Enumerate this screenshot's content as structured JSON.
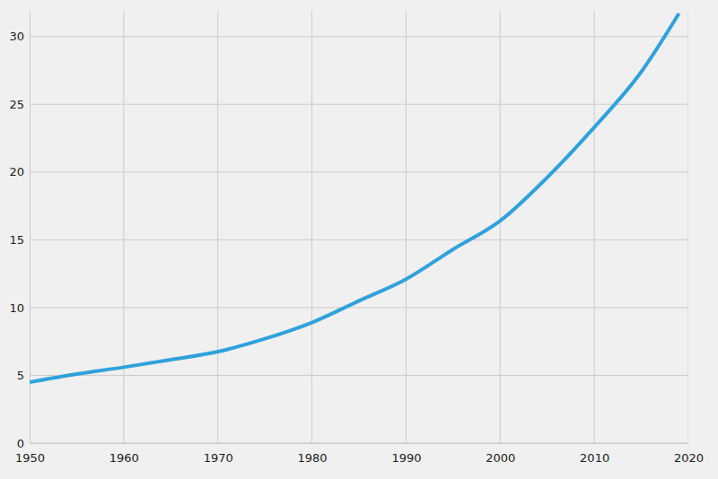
{
  "chart_data": {
    "type": "line",
    "x": [
      1950,
      1955,
      1960,
      1965,
      1970,
      1975,
      1980,
      1985,
      1990,
      1995,
      2000,
      2005,
      2010,
      2015,
      2019
    ],
    "values": [
      4.5,
      5.1,
      5.6,
      6.15,
      6.75,
      7.7,
      8.9,
      10.5,
      12.1,
      14.3,
      16.4,
      19.6,
      23.3,
      27.4,
      31.7
    ],
    "color": "#30a2da",
    "xlim": [
      1950,
      2020
    ],
    "xticks": [
      1950,
      1960,
      1970,
      1980,
      1990,
      2000,
      2010,
      2020
    ],
    "ylim": [
      0,
      31.9
    ],
    "yticks": [
      0,
      5,
      10,
      15,
      20,
      25,
      30
    ],
    "grid": true
  }
}
